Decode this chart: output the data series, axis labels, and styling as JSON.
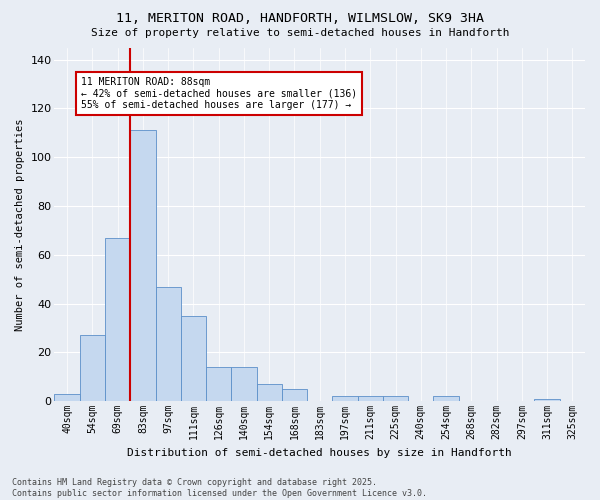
{
  "title_line1": "11, MERITON ROAD, HANDFORTH, WILMSLOW, SK9 3HA",
  "title_line2": "Size of property relative to semi-detached houses in Handforth",
  "xlabel": "Distribution of semi-detached houses by size in Handforth",
  "ylabel": "Number of semi-detached properties",
  "categories": [
    "40sqm",
    "54sqm",
    "69sqm",
    "83sqm",
    "97sqm",
    "111sqm",
    "126sqm",
    "140sqm",
    "154sqm",
    "168sqm",
    "183sqm",
    "197sqm",
    "211sqm",
    "225sqm",
    "240sqm",
    "254sqm",
    "268sqm",
    "282sqm",
    "297sqm",
    "311sqm",
    "325sqm"
  ],
  "values": [
    3,
    27,
    67,
    111,
    47,
    35,
    14,
    14,
    7,
    5,
    0,
    2,
    2,
    2,
    0,
    2,
    0,
    0,
    0,
    1,
    0
  ],
  "bar_color": "#c5d8ef",
  "bar_edge_color": "#5b8fc9",
  "background_color": "#e8edf4",
  "grid_color": "#ffffff",
  "vline_index": 3,
  "vline_color": "#cc0000",
  "annotation_text": "11 MERITON ROAD: 88sqm\n← 42% of semi-detached houses are smaller (136)\n55% of semi-detached houses are larger (177) →",
  "annotation_box_color": "#ffffff",
  "annotation_box_edge": "#cc0000",
  "ylim": [
    0,
    145
  ],
  "yticks": [
    0,
    20,
    40,
    60,
    80,
    100,
    120,
    140
  ],
  "footer_text": "Contains HM Land Registry data © Crown copyright and database right 2025.\nContains public sector information licensed under the Open Government Licence v3.0."
}
